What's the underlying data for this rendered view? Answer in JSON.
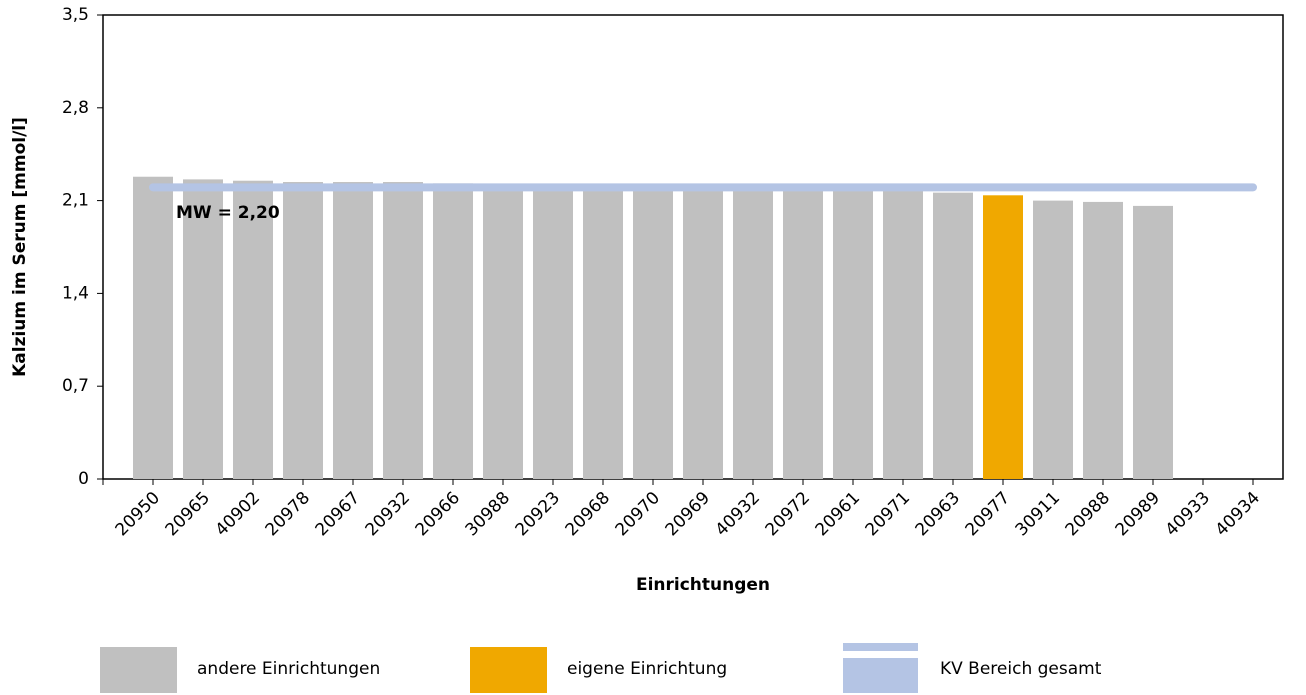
{
  "chart_data": {
    "type": "bar",
    "xlabel": "Einrichtungen",
    "ylabel": "Kalzium im Serum [mmol/l]",
    "categories": [
      "20950",
      "20965",
      "40902",
      "20978",
      "20967",
      "20932",
      "20966",
      "30988",
      "20923",
      "20968",
      "20970",
      "20969",
      "40932",
      "20972",
      "20961",
      "20971",
      "20963",
      "20977",
      "30911",
      "20988",
      "20989",
      "40933",
      "40934"
    ],
    "series": [
      {
        "name": "andere Einrichtungen",
        "color": "#c0c0c0",
        "values": [
          2.28,
          2.26,
          2.25,
          2.24,
          2.24,
          2.24,
          2.23,
          2.22,
          2.22,
          2.22,
          2.21,
          2.21,
          2.21,
          2.21,
          2.2,
          2.2,
          2.16,
          null,
          2.1,
          2.09,
          2.06,
          null,
          null
        ]
      },
      {
        "name": "eigene Einrichtung",
        "color": "#f0a800",
        "values": [
          null,
          null,
          null,
          null,
          null,
          null,
          null,
          null,
          null,
          null,
          null,
          null,
          null,
          null,
          null,
          null,
          null,
          2.14,
          null,
          null,
          null,
          null,
          null
        ]
      },
      {
        "name": "KV Bereich gesamt",
        "color": "#b4c4e4",
        "value": 2.2
      }
    ],
    "annotation": "MW = 2,20",
    "ylim": [
      0,
      3.5
    ],
    "yticks": [
      0,
      {
        "value": 0.7,
        "label": "0,7"
      },
      {
        "value": 1.4,
        "label": "1,4"
      },
      {
        "value": 2.1,
        "label": "2,1"
      },
      {
        "value": 2.8,
        "label": "2,8"
      },
      {
        "value": 3.5,
        "label": "3,5"
      }
    ],
    "grid": false
  }
}
